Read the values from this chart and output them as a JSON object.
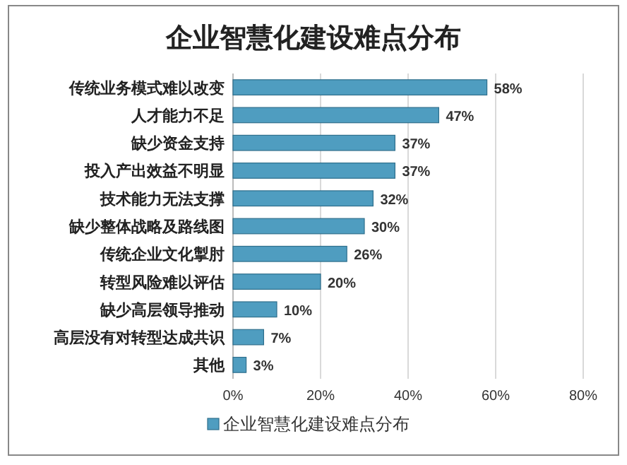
{
  "chart_data": {
    "type": "bar",
    "orientation": "horizontal",
    "title": "企业智慧化建设难点分布",
    "categories": [
      "传统业务模式难以改变",
      "人才能力不足",
      "缺少资金支持",
      "投入产出效益不明显",
      "技术能力无法支撑",
      "缺少整体战略及路线图",
      "传统企业文化掣肘",
      "转型风险难以评估",
      "缺少高层领导推动",
      "高层没有对转型达成共识",
      "其他"
    ],
    "series": [
      {
        "name": "企业智慧化建设难点分布",
        "color": "#4f9dc0",
        "values": [
          58,
          47,
          37,
          37,
          32,
          30,
          26,
          20,
          10,
          7,
          3
        ],
        "value_labels": [
          "58%",
          "47%",
          "37%",
          "37%",
          "32%",
          "30%",
          "26%",
          "20%",
          "10%",
          "7%",
          "3%"
        ]
      }
    ],
    "xlim": [
      0,
      80
    ],
    "xticks": [
      {
        "value": 0,
        "label": "0%"
      },
      {
        "value": 20,
        "label": "20%"
      },
      {
        "value": 40,
        "label": "40%"
      },
      {
        "value": 60,
        "label": "60%"
      },
      {
        "value": 80,
        "label": "80%"
      }
    ],
    "grid": "x",
    "legend": "bottom"
  }
}
